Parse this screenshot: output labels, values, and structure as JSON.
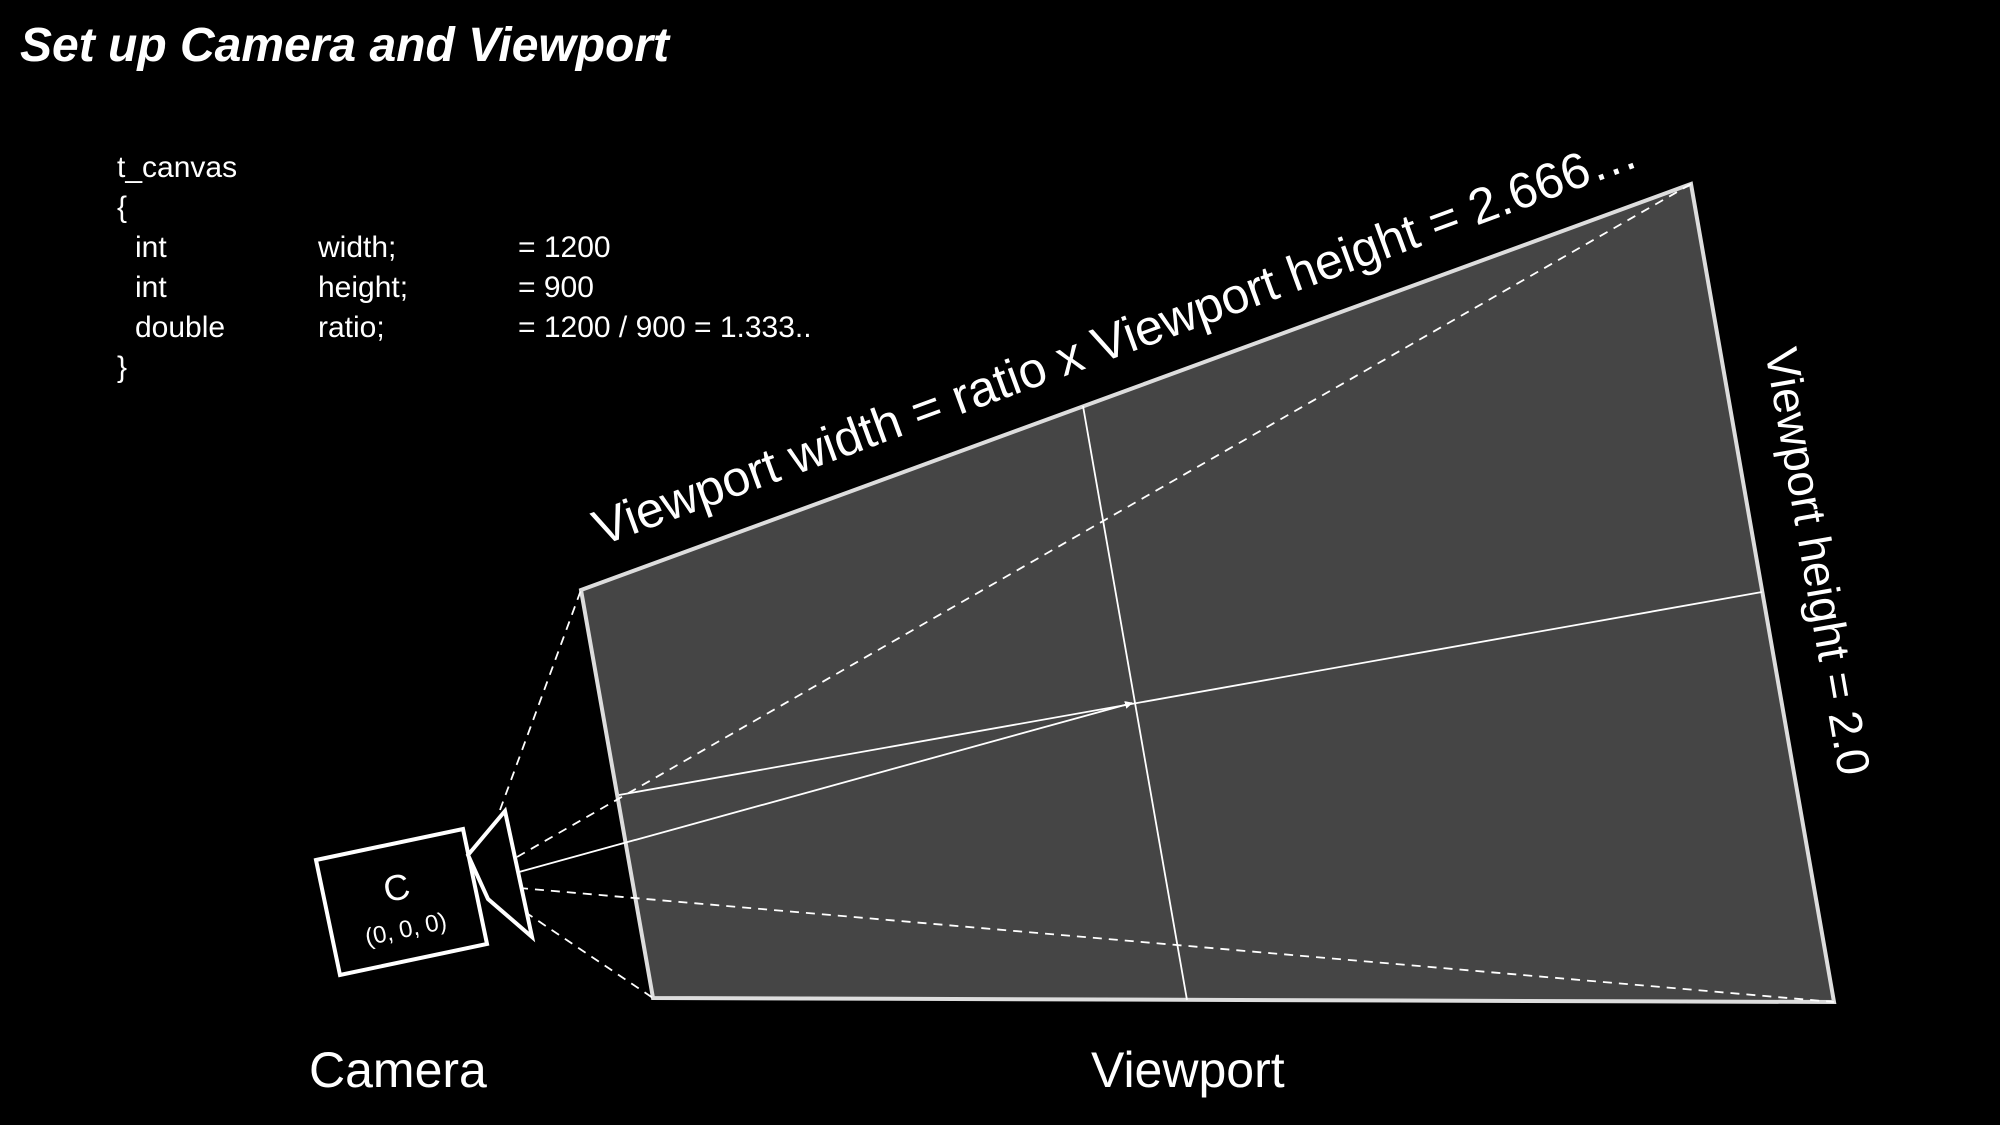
{
  "title": "Set up Camera and Viewport",
  "code": {
    "struct_name": "t_canvas",
    "open_brace": "{",
    "close_brace": "}",
    "fields": [
      {
        "type": "int",
        "name": "width;",
        "value": "= 1200"
      },
      {
        "type": "int",
        "name": "height;",
        "value": "= 900"
      },
      {
        "type": "double",
        "name": "ratio;",
        "value": "= 1200 / 900 = 1.333.."
      }
    ]
  },
  "diagram": {
    "viewport_width_label": "Viewport width = ratio x Viewport height = 2.666…",
    "viewport_height_label": "Viewport height = 2.0",
    "camera_symbol": "C",
    "camera_coords": "(0, 0, 0)",
    "camera_caption": "Camera",
    "viewport_caption": "Viewport",
    "colors": {
      "background": "#000000",
      "viewport_fill": "#454545",
      "lines": "#ffffff"
    }
  }
}
